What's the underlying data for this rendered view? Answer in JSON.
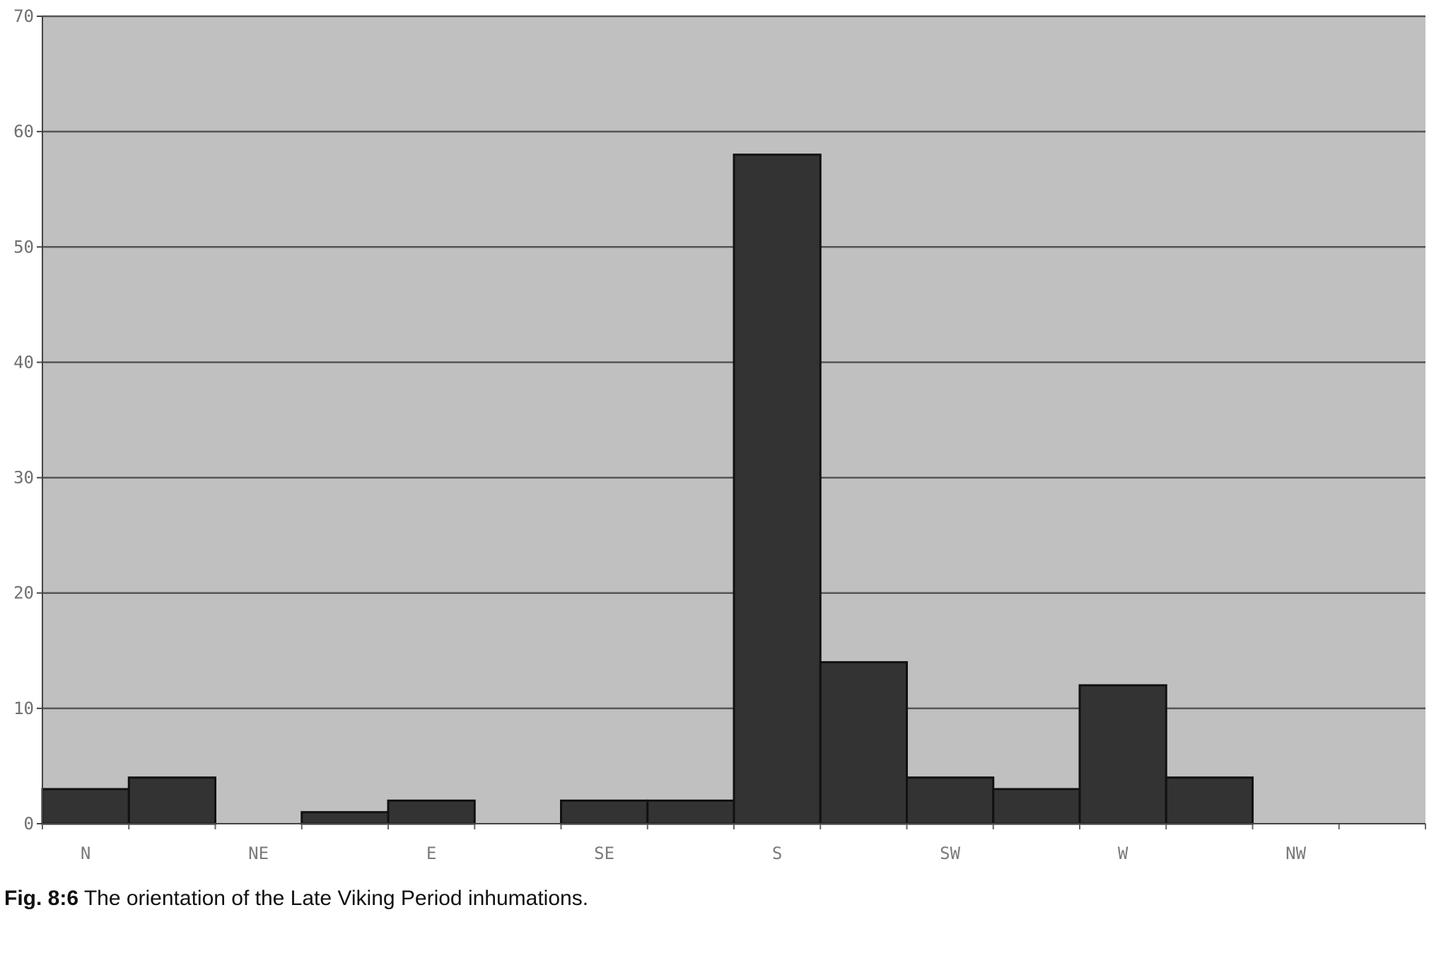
{
  "caption": {
    "figure_label": "Fig. 8:6",
    "text": "The orientation of the Late Viking Period inhumations."
  },
  "colors": {
    "plot_background": "#c0c0c0",
    "bar_fill": "#333333",
    "bar_stroke": "#111111",
    "gridline": "#555555"
  },
  "chart_data": {
    "type": "bar",
    "title": "",
    "xlabel": "",
    "ylabel": "",
    "ylim": [
      0,
      70
    ],
    "yticks": [
      0,
      10,
      20,
      30,
      40,
      50,
      60,
      70
    ],
    "grid": true,
    "legend": "none",
    "category_labels": [
      "N",
      "NE",
      "E",
      "SE",
      "S",
      "SW",
      "W",
      "NW"
    ],
    "values": [
      3,
      4,
      0,
      1,
      2,
      0,
      2,
      2,
      58,
      14,
      4,
      3,
      12,
      4,
      0,
      0
    ]
  }
}
